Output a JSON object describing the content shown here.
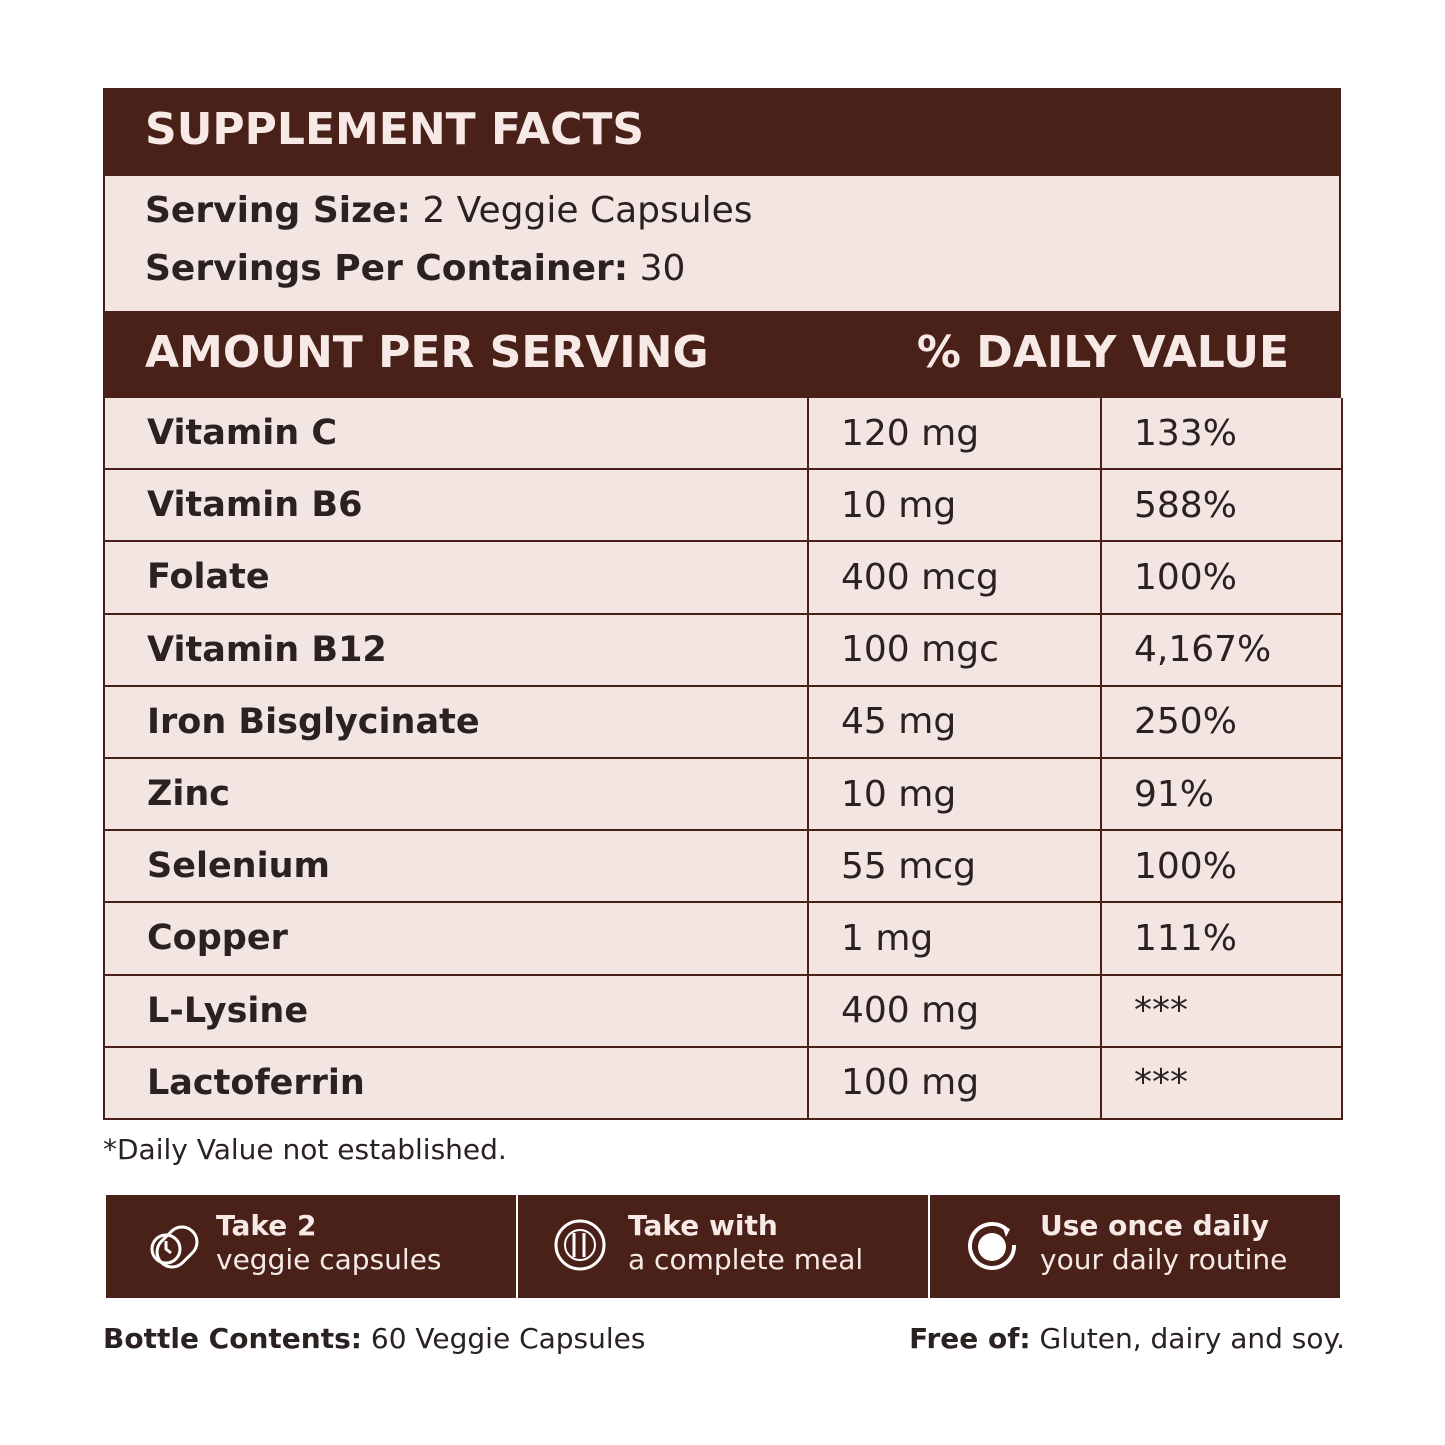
{
  "title": "SUPPLEMENT FACTS",
  "serving": [
    {
      "label": "Serving Size:",
      "value": "2 Veggie Capsules"
    },
    {
      "label": "Servings Per Container:",
      "value": "30"
    }
  ],
  "table": {
    "header": [
      "AMOUNT PER SERVING",
      "% DAILY VALUE"
    ],
    "rows": [
      [
        "Vitamin C",
        "120 mg",
        "133%"
      ],
      [
        "Vitamin B6",
        "10 mg",
        "588%"
      ],
      [
        "Folate",
        "400 mcg",
        "100%"
      ],
      [
        "Vitamin B12",
        "100 mgc",
        "4,167%"
      ],
      [
        "Iron Bisglycinate",
        "45 mg",
        "250%"
      ],
      [
        "Zinc",
        "10 mg",
        "91%"
      ],
      [
        "Selenium",
        "55 mcg",
        "100%"
      ],
      [
        "Copper",
        "1 mg",
        "111%"
      ],
      [
        "L-Lysine",
        "400 mg",
        "***"
      ],
      [
        "Lactoferrin",
        "100 mg",
        "***"
      ]
    ]
  },
  "footnote": "*Daily Value not established.",
  "directions": [
    {
      "title": "Take 2",
      "text": "veggie capsules"
    },
    {
      "title": "Take with",
      "text": "a complete meal"
    },
    {
      "title": "Use once daily",
      "text": "your daily routine"
    }
  ],
  "bottle": {
    "label": "Bottle Contents:",
    "value": "60 Veggie Capsules"
  },
  "free_of": {
    "label": "Free of:",
    "value": "Gluten, dairy and soy."
  }
}
